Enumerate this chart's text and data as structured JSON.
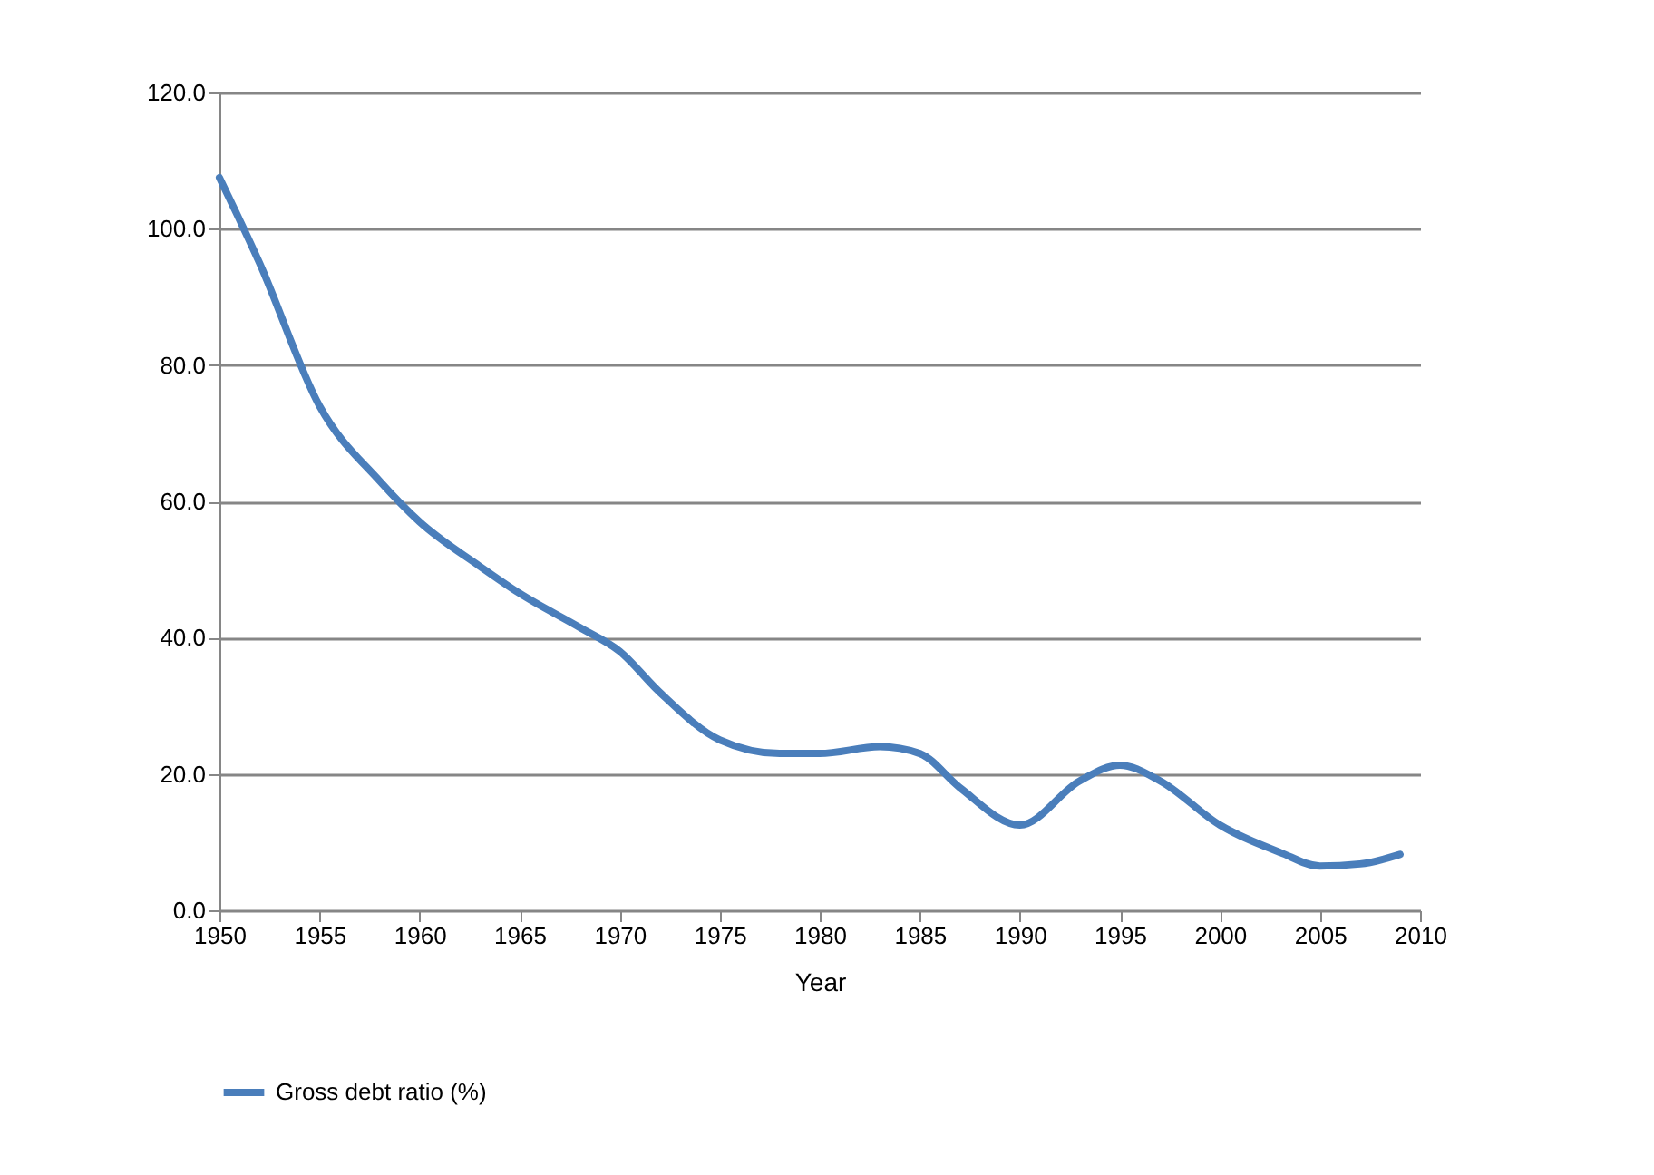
{
  "chart_data": {
    "type": "line",
    "xlabel": "Year",
    "x": [
      1950,
      1952,
      1955,
      1958,
      1960,
      1963,
      1965,
      1968,
      1970,
      1972,
      1975,
      1978,
      1980,
      1983,
      1985,
      1987,
      1990,
      1993,
      1995,
      1997,
      2000,
      2003,
      2005,
      2007,
      2009
    ],
    "series": [
      {
        "name": "Gross debt ratio (%)",
        "color": "#4a7ebb",
        "values": [
          107.5,
          95,
          74,
          63,
          57,
          50.5,
          46.5,
          41.5,
          38,
          32,
          25,
          23,
          23,
          24,
          23,
          18,
          12.5,
          19,
          21.3,
          19,
          12.5,
          8.5,
          6.5,
          6.8,
          8.2
        ]
      }
    ],
    "xlim": [
      1950,
      2010
    ],
    "xticks": [
      1950,
      1955,
      1960,
      1965,
      1970,
      1975,
      1980,
      1985,
      1990,
      1995,
      2000,
      2005,
      2010
    ],
    "ylim": [
      0,
      120
    ],
    "yticks": [
      {
        "value": 0,
        "label": "0.0"
      },
      {
        "value": 20,
        "label": "20.0"
      },
      {
        "value": 40,
        "label": "40.0"
      },
      {
        "value": 60,
        "label": "60.0"
      },
      {
        "value": 80,
        "label": "80.0"
      },
      {
        "value": 100,
        "label": "100.0"
      },
      {
        "value": 120,
        "label": "120.0"
      }
    ],
    "grid": "y",
    "legend": "bottom",
    "marker": "none",
    "line_style": "solid"
  }
}
